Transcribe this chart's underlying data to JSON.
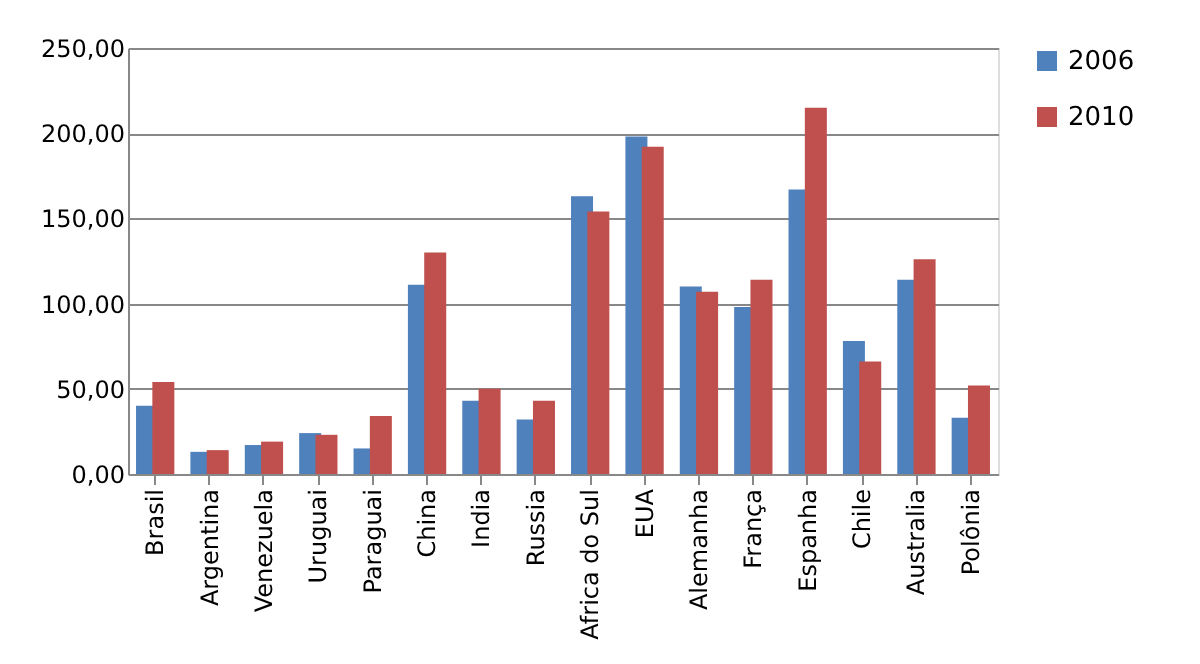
{
  "chart_data": {
    "type": "bar",
    "categories": [
      "Brasil",
      "Argentina",
      "Venezuela",
      "Uruguai",
      "Paraguai",
      "China",
      "India",
      "Russia",
      "Africa do Sul",
      "EUA",
      "Alemanha",
      "França",
      "Espanha",
      "Chile",
      "Australia",
      "Polônia"
    ],
    "series": [
      {
        "name": "2006",
        "color": "#4f81bd",
        "values": [
          40,
          13,
          17,
          24,
          15,
          111,
          43,
          32,
          163,
          198,
          110,
          98,
          167,
          78,
          114,
          33
        ]
      },
      {
        "name": "2010",
        "color": "#c0504d",
        "values": [
          54,
          14,
          19,
          23,
          34,
          130,
          50,
          43,
          154,
          192,
          107,
          114,
          215,
          66,
          126,
          52
        ]
      }
    ],
    "ylim": [
      0,
      250
    ],
    "yticks": [
      {
        "value": 0,
        "label": "0,00"
      },
      {
        "value": 50,
        "label": "50,00"
      },
      {
        "value": 100,
        "label": "100,00"
      },
      {
        "value": 150,
        "label": "150,00"
      },
      {
        "value": 200,
        "label": "200,00"
      },
      {
        "value": 250,
        "label": "250,00"
      }
    ],
    "grid": "y",
    "legend": "right"
  }
}
